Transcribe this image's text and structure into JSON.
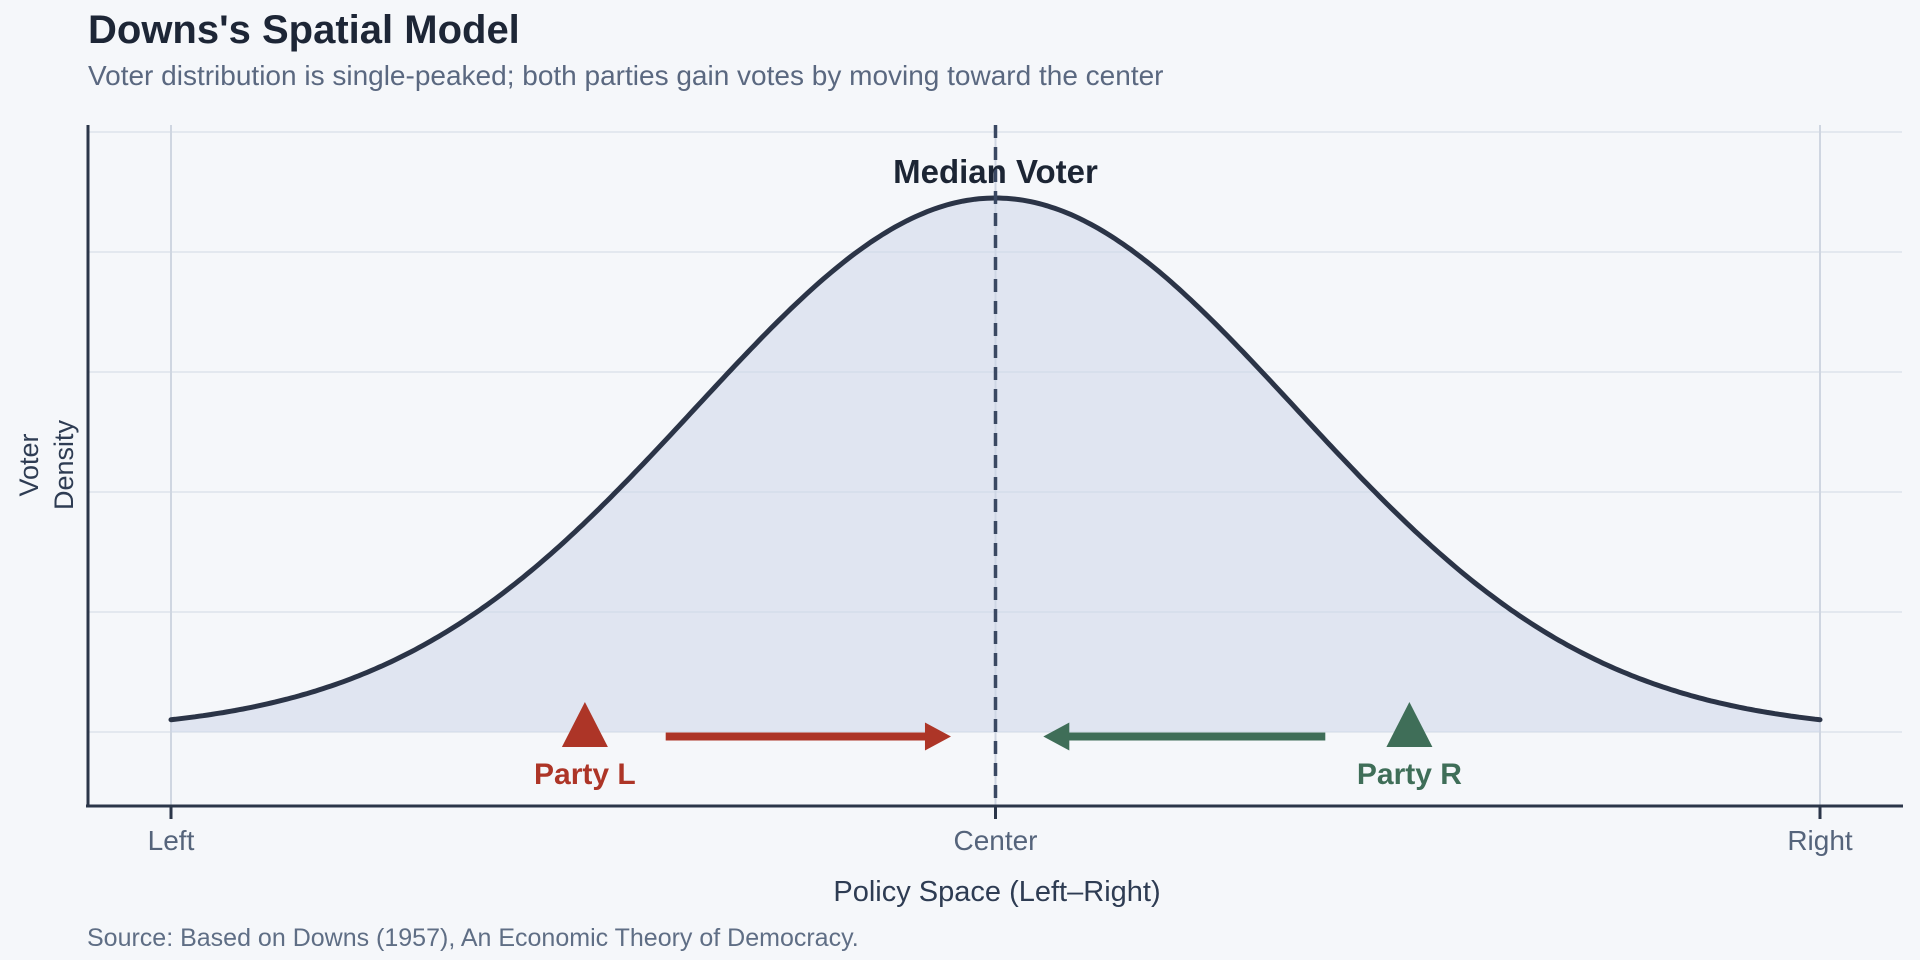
{
  "header": {
    "title": "Downs's Spatial Model",
    "subtitle": "Voter distribution is single-peaked; both parties gain votes by moving toward the center"
  },
  "footer": {
    "source": "Source: Based on Downs (1957), An Economic Theory of Democracy."
  },
  "chart_data": {
    "type": "area",
    "title": "Downs's Spatial Model",
    "subtitle": "Voter distribution is single-peaked; both parties gain votes by moving toward the center",
    "xlabel": "Policy Space (Left–Right)",
    "ylabel": "Voter Density",
    "ylabel_lines": [
      "Voter",
      "Density"
    ],
    "x_ticks": [
      "Left",
      "Center",
      "Right"
    ],
    "x_tick_positions": [
      0,
      0.5,
      1
    ],
    "x_range": [
      0,
      1
    ],
    "y_axis_numeric_labels": false,
    "grid": true,
    "y_gridlines": 6,
    "curve": {
      "shape": "gaussian",
      "mean": 0.5,
      "sigma": 0.182,
      "peak_relative_height": 1.0,
      "tail_relative_height": 0.022
    },
    "median_voter": {
      "x": 0.5,
      "label": "Median Voter",
      "line_style": "dashed"
    },
    "parties": [
      {
        "id": "party-l",
        "label": "Party L",
        "position": 0.251,
        "color": "#ad3527",
        "arrow": {
          "from": 0.3,
          "to": 0.473,
          "direction": "right"
        }
      },
      {
        "id": "party-r",
        "label": "Party R",
        "position": 0.751,
        "color": "#3f6e58",
        "arrow": {
          "from": 0.7,
          "to": 0.529,
          "direction": "left"
        }
      }
    ],
    "colors": {
      "curve_stroke": "#2b3447",
      "fill": "#dde4f0",
      "median_line": "#3a4862",
      "party_left": "#ad3527",
      "party_right": "#3f6e58",
      "background": "#f5f7fa"
    }
  }
}
